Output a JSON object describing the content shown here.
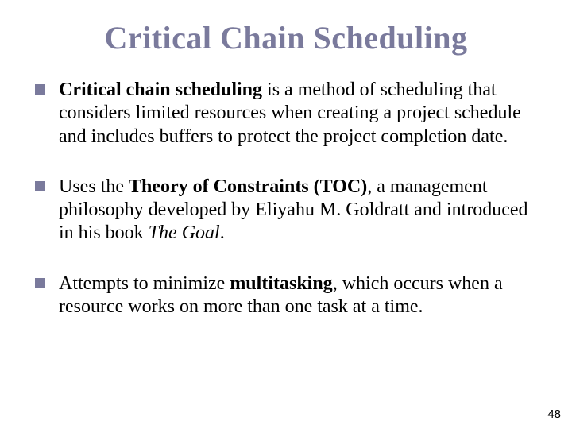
{
  "title": "Critical Chain Scheduling",
  "title_color": "#7a7a9c",
  "title_fontsize": 40,
  "bullet_marker_color": "#7a7a9c",
  "body_fontsize": 24,
  "background_color": "#ffffff",
  "bullets": [
    {
      "bold_lead": "Critical chain scheduling",
      "rest": " is a method of scheduling that considers limited resources when creating a project schedule and includes buffers to protect the project completion date."
    },
    {
      "pre": "Uses the ",
      "bold_mid": "Theory of Constraints (TOC)",
      "post": ", a management philosophy developed by Eliyahu M. Goldratt and introduced in his book ",
      "italic_tail": "The Goal",
      "end": "."
    },
    {
      "pre": "Attempts to minimize ",
      "bold_mid": "multitasking",
      "post": ", which occurs when a resource works on more than one task at a time."
    }
  ],
  "page_number": "48"
}
